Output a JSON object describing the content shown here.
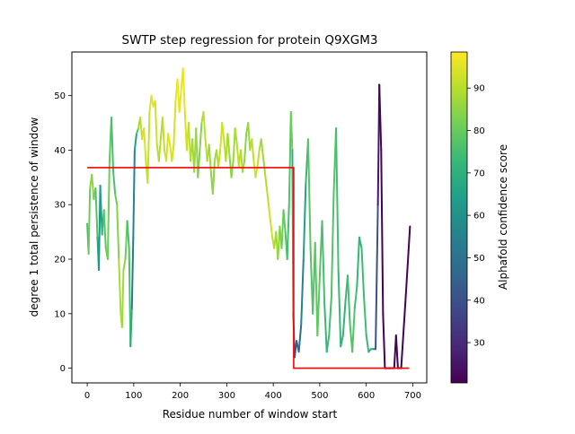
{
  "chart_data": {
    "type": "line",
    "title": "SWTP step regression for protein Q9XGM3",
    "xlabel": "Residue number of window start",
    "ylabel": "degree 1 total persistence of window",
    "xlim": [
      -33,
      730
    ],
    "ylim": [
      -2.7,
      58
    ],
    "xticks": [
      0,
      100,
      200,
      300,
      400,
      500,
      600,
      700
    ],
    "yticks": [
      0,
      10,
      20,
      30,
      40,
      50
    ],
    "colorbar": {
      "label": "Alphafold confidence score",
      "range": [
        20.5,
        98.5
      ],
      "ticks": [
        30,
        40,
        50,
        60,
        70,
        80,
        90
      ],
      "colormap": "viridis"
    },
    "series": [
      {
        "kind": "persistence",
        "points": [
          [
            0,
            26.5,
            74
          ],
          [
            3,
            21,
            78
          ],
          [
            6,
            33,
            83
          ],
          [
            10,
            35.5,
            86
          ],
          [
            14,
            31,
            84
          ],
          [
            18,
            33,
            80
          ],
          [
            22,
            24,
            75
          ],
          [
            25,
            18,
            62
          ],
          [
            28,
            33.5,
            60
          ],
          [
            32,
            24.5,
            70
          ],
          [
            36,
            29,
            76
          ],
          [
            40,
            22,
            80
          ],
          [
            44,
            20,
            82
          ],
          [
            48,
            38,
            80
          ],
          [
            52,
            46,
            77
          ],
          [
            56,
            36,
            74
          ],
          [
            60,
            32,
            78
          ],
          [
            64,
            30,
            82
          ],
          [
            68,
            20,
            86
          ],
          [
            72,
            10,
            90
          ],
          [
            75,
            7.5,
            88
          ],
          [
            78,
            18,
            86
          ],
          [
            82,
            20,
            84
          ],
          [
            86,
            27,
            78
          ],
          [
            90,
            22,
            72
          ],
          [
            93,
            4,
            80
          ],
          [
            96,
            11,
            55
          ],
          [
            99,
            24,
            50
          ],
          [
            102,
            40,
            60
          ],
          [
            106,
            43,
            70
          ],
          [
            110,
            44,
            84
          ],
          [
            114,
            46,
            90
          ],
          [
            118,
            42,
            92
          ],
          [
            122,
            44,
            95
          ],
          [
            126,
            38,
            93
          ],
          [
            130,
            34,
            90
          ],
          [
            134,
            47,
            93
          ],
          [
            138,
            50,
            95
          ],
          [
            142,
            48,
            96
          ],
          [
            146,
            49,
            94
          ],
          [
            150,
            41,
            92
          ],
          [
            154,
            38,
            90
          ],
          [
            158,
            42,
            88
          ],
          [
            162,
            46,
            90
          ],
          [
            166,
            40,
            92
          ],
          [
            170,
            38,
            93
          ],
          [
            174,
            43,
            95
          ],
          [
            178,
            41,
            96
          ],
          [
            182,
            38,
            94
          ],
          [
            186,
            41,
            92
          ],
          [
            190,
            49,
            95
          ],
          [
            194,
            53,
            97
          ],
          [
            198,
            47,
            96
          ],
          [
            202,
            51,
            95
          ],
          [
            206,
            55,
            97
          ],
          [
            210,
            47,
            95
          ],
          [
            214,
            40,
            93
          ],
          [
            218,
            45,
            92
          ],
          [
            222,
            38,
            90
          ],
          [
            226,
            42,
            88
          ],
          [
            230,
            36,
            86
          ],
          [
            234,
            44,
            88
          ],
          [
            238,
            35,
            84
          ],
          [
            242,
            40,
            82
          ],
          [
            246,
            45,
            86
          ],
          [
            250,
            47,
            90
          ],
          [
            254,
            42,
            92
          ],
          [
            258,
            38,
            90
          ],
          [
            262,
            41,
            88
          ],
          [
            266,
            36,
            86
          ],
          [
            270,
            32,
            84
          ],
          [
            274,
            38,
            86
          ],
          [
            278,
            40,
            88
          ],
          [
            282,
            37,
            90
          ],
          [
            286,
            40,
            92
          ],
          [
            290,
            45,
            94
          ],
          [
            294,
            42,
            92
          ],
          [
            298,
            38,
            90
          ],
          [
            302,
            43,
            88
          ],
          [
            306,
            39,
            86
          ],
          [
            310,
            35,
            84
          ],
          [
            314,
            38,
            86
          ],
          [
            318,
            44,
            88
          ],
          [
            322,
            41,
            90
          ],
          [
            326,
            37,
            92
          ],
          [
            330,
            40,
            90
          ],
          [
            334,
            36,
            88
          ],
          [
            338,
            38,
            86
          ],
          [
            342,
            43,
            84
          ],
          [
            346,
            45,
            86
          ],
          [
            350,
            40,
            88
          ],
          [
            354,
            42,
            90
          ],
          [
            358,
            38,
            92
          ],
          [
            362,
            35,
            94
          ],
          [
            366,
            37,
            92
          ],
          [
            370,
            40,
            90
          ],
          [
            374,
            42,
            88
          ],
          [
            378,
            39,
            86
          ],
          [
            382,
            36,
            88
          ],
          [
            386,
            33,
            90
          ],
          [
            390,
            30,
            92
          ],
          [
            394,
            27,
            94
          ],
          [
            398,
            24,
            92
          ],
          [
            402,
            22,
            90
          ],
          [
            406,
            25,
            88
          ],
          [
            410,
            20,
            86
          ],
          [
            414,
            26,
            84
          ],
          [
            418,
            22,
            82
          ],
          [
            422,
            29,
            80
          ],
          [
            426,
            25,
            78
          ],
          [
            430,
            20,
            76
          ],
          [
            434,
            30,
            74
          ],
          [
            438,
            47,
            80
          ],
          [
            441,
            40,
            82
          ],
          [
            443,
            10,
            55
          ],
          [
            446,
            2,
            40
          ],
          [
            450,
            5,
            42
          ],
          [
            455,
            3,
            45
          ],
          [
            460,
            8,
            50
          ],
          [
            465,
            20,
            60
          ],
          [
            470,
            34,
            70
          ],
          [
            475,
            42,
            76
          ],
          [
            480,
            22,
            80
          ],
          [
            485,
            10,
            75
          ],
          [
            490,
            23,
            78
          ],
          [
            495,
            6,
            80
          ],
          [
            500,
            17,
            78
          ],
          [
            505,
            27,
            76
          ],
          [
            510,
            12,
            74
          ],
          [
            515,
            3,
            72
          ],
          [
            520,
            6,
            74
          ],
          [
            525,
            13,
            76
          ],
          [
            530,
            32,
            78
          ],
          [
            535,
            44,
            76
          ],
          [
            540,
            18,
            74
          ],
          [
            545,
            4,
            72
          ],
          [
            550,
            6,
            70
          ],
          [
            555,
            12,
            72
          ],
          [
            560,
            17,
            74
          ],
          [
            565,
            8,
            76
          ],
          [
            570,
            3,
            78
          ],
          [
            575,
            11,
            76
          ],
          [
            580,
            15,
            74
          ],
          [
            585,
            24,
            70
          ],
          [
            590,
            22,
            72
          ],
          [
            595,
            13,
            75
          ],
          [
            600,
            6,
            74
          ],
          [
            605,
            3,
            72
          ],
          [
            610,
            3.5,
            70
          ],
          [
            615,
            3.5,
            68
          ],
          [
            620,
            3.5,
            50
          ],
          [
            625,
            30,
            30
          ],
          [
            628,
            52,
            21
          ],
          [
            632,
            40,
            21
          ],
          [
            636,
            10,
            21
          ],
          [
            640,
            0,
            21
          ],
          [
            650,
            0,
            21
          ],
          [
            660,
            0,
            21
          ],
          [
            664,
            6,
            21
          ],
          [
            668,
            0,
            21
          ],
          [
            675,
            0,
            21
          ],
          [
            684,
            12,
            21
          ],
          [
            694,
            26,
            21
          ]
        ]
      },
      {
        "kind": "step-fit",
        "color": "#ff0000",
        "points": [
          [
            0,
            36.8
          ],
          [
            444,
            36.8
          ],
          [
            444,
            0
          ],
          [
            692,
            0
          ]
        ]
      }
    ]
  }
}
